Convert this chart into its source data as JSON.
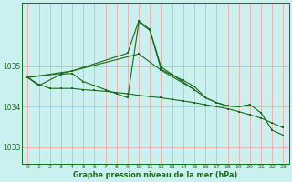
{
  "title": "Graphe pression niveau de la mer (hPa)",
  "background_color": "#caf0f0",
  "grid_color": "#ff9999",
  "line_color": "#1a6b1a",
  "ylim": [
    1032.6,
    1036.55
  ],
  "yticks": [
    1033,
    1034,
    1035
  ],
  "xlim": [
    -0.5,
    23.5
  ],
  "line1": {
    "x": [
      0,
      1,
      2,
      3,
      4,
      5,
      6,
      7,
      8,
      9,
      10,
      11,
      12,
      13,
      14,
      15,
      16,
      17,
      18,
      19,
      20,
      21,
      22,
      23
    ],
    "y": [
      1034.72,
      1034.55,
      1034.45,
      1034.45,
      1034.45,
      1034.42,
      1034.4,
      1034.38,
      1034.35,
      1034.32,
      1034.28,
      1034.25,
      1034.22,
      1034.18,
      1034.14,
      1034.1,
      1034.05,
      1034.0,
      1033.95,
      1033.88,
      1033.8,
      1033.72,
      1033.6,
      1033.48
    ]
  },
  "line2": {
    "x": [
      0,
      4,
      10,
      12,
      15,
      16,
      17,
      18,
      19,
      20
    ],
    "y": [
      1034.72,
      1034.88,
      1035.3,
      1034.9,
      1034.42,
      1034.22,
      1034.1,
      1034.02,
      1034.0,
      1034.05
    ]
  },
  "line3": {
    "x": [
      0,
      3,
      4,
      9,
      10,
      11,
      12,
      15
    ],
    "y": [
      1034.72,
      1034.82,
      1034.88,
      1035.32,
      1036.12,
      1035.9,
      1034.98,
      1034.42
    ]
  },
  "line4": {
    "x": [
      0,
      1,
      3,
      4,
      5,
      6,
      7,
      8,
      9,
      10,
      11,
      12,
      13,
      14,
      15,
      16,
      17,
      18,
      19,
      20,
      21,
      22,
      23
    ],
    "y": [
      1034.72,
      1034.52,
      1034.8,
      1034.82,
      1034.62,
      1034.52,
      1034.42,
      1034.32,
      1034.22,
      1036.08,
      1035.88,
      1034.92,
      1034.78,
      1034.65,
      1034.5,
      1034.22,
      1034.1,
      1034.02,
      1034.0,
      1034.05,
      1033.85,
      1033.42,
      1033.3
    ]
  }
}
